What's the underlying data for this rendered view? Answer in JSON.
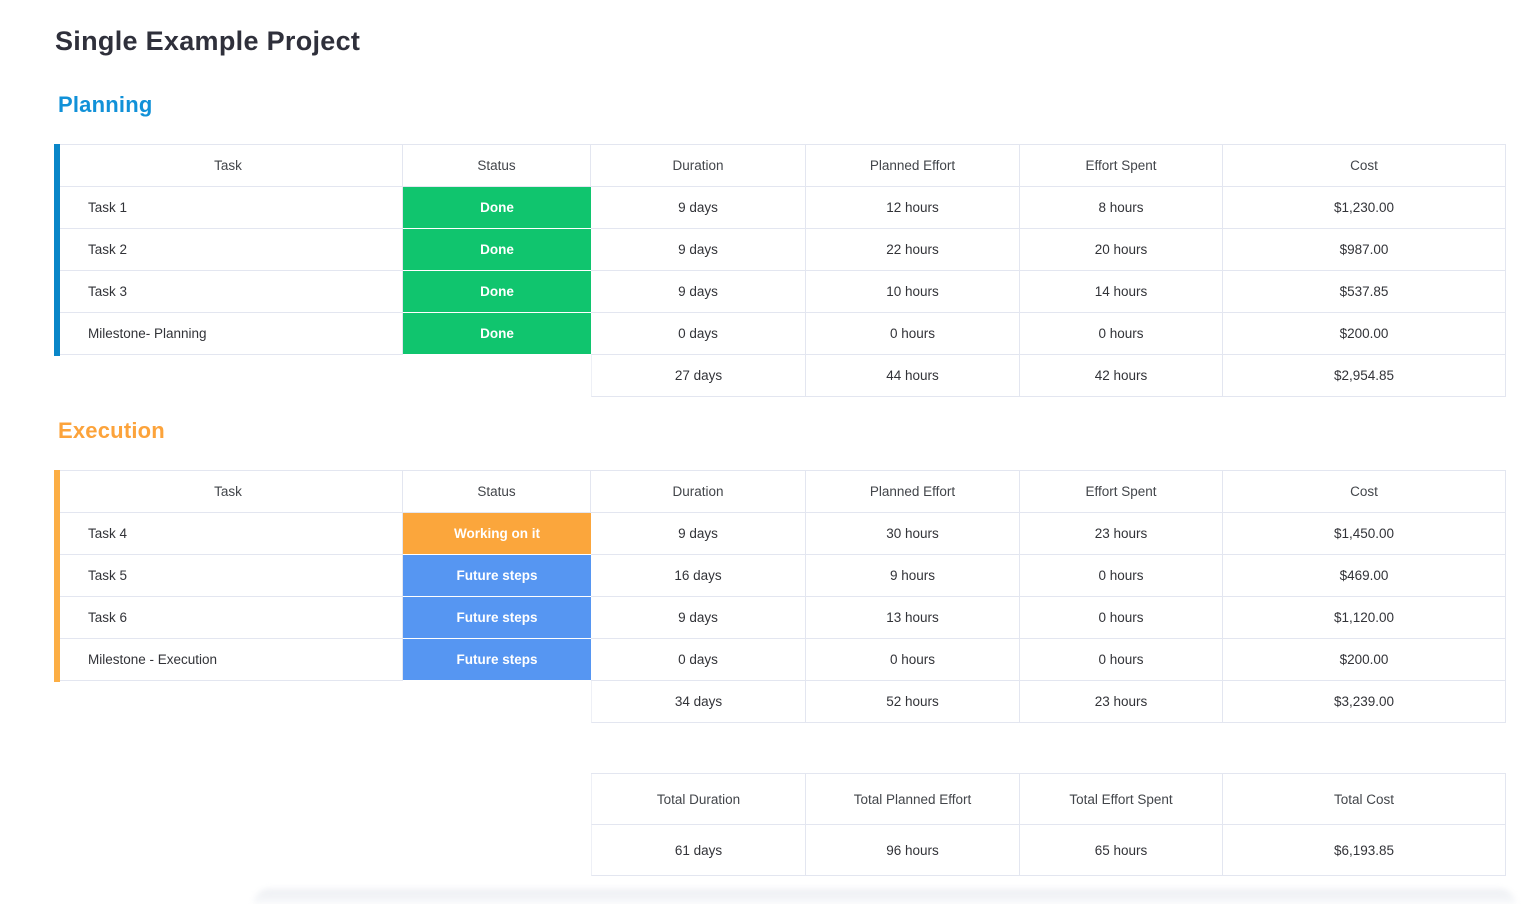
{
  "page": {
    "title": "Single Example Project"
  },
  "palette": {
    "title_color": "#2f303b",
    "text_color": "#323338",
    "border_color": "#e3e6f0",
    "status_colors": {
      "Done": "#10c56e",
      "Working on it": "#fba63c",
      "Future steps": "#5696f2"
    }
  },
  "columns": [
    "Task",
    "Status",
    "Duration",
    "Planned Effort",
    "Effort Spent",
    "Cost"
  ],
  "sections": [
    {
      "id": "planning",
      "heading": "Planning",
      "heading_color": "#1191d8",
      "bar_color": "#0986c8",
      "rows": [
        {
          "task": "Task 1",
          "status": "Done",
          "duration": "9 days",
          "planned_effort": "12 hours",
          "effort_spent": "8 hours",
          "cost": "$1,230.00"
        },
        {
          "task": "Task 2",
          "status": "Done",
          "duration": "9 days",
          "planned_effort": "22 hours",
          "effort_spent": "20 hours",
          "cost": "$987.00"
        },
        {
          "task": "Task 3",
          "status": "Done",
          "duration": "9 days",
          "planned_effort": "10 hours",
          "effort_spent": "14 hours",
          "cost": "$537.85"
        },
        {
          "task": "Milestone- Planning",
          "status": "Done",
          "duration": "0 days",
          "planned_effort": "0 hours",
          "effort_spent": "0 hours",
          "cost": "$200.00"
        }
      ],
      "summary": {
        "duration": "27 days",
        "planned_effort": "44 hours",
        "effort_spent": "42 hours",
        "cost": "$2,954.85"
      }
    },
    {
      "id": "execution",
      "heading": "Execution",
      "heading_color": "#fca33b",
      "bar_color": "#fcae44",
      "rows": [
        {
          "task": "Task 4",
          "status": "Working on it",
          "duration": "9 days",
          "planned_effort": "30 hours",
          "effort_spent": "23 hours",
          "cost": "$1,450.00"
        },
        {
          "task": "Task 5",
          "status": "Future steps",
          "duration": "16 days",
          "planned_effort": "9 hours",
          "effort_spent": "0 hours",
          "cost": "$469.00"
        },
        {
          "task": "Task 6",
          "status": "Future steps",
          "duration": "9 days",
          "planned_effort": "13 hours",
          "effort_spent": "0 hours",
          "cost": "$1,120.00"
        },
        {
          "task": "Milestone - Execution",
          "status": "Future steps",
          "duration": "0 days",
          "planned_effort": "0 hours",
          "effort_spent": "0 hours",
          "cost": "$200.00"
        }
      ],
      "summary": {
        "duration": "34 days",
        "planned_effort": "52 hours",
        "effort_spent": "23 hours",
        "cost": "$3,239.00"
      }
    }
  ],
  "totals": {
    "headers": [
      "Total Duration",
      "Total Planned Effort",
      "Total Effort Spent",
      "Total Cost"
    ],
    "values": [
      "61 days",
      "96 hours",
      "65 hours",
      "$6,193.85"
    ]
  }
}
